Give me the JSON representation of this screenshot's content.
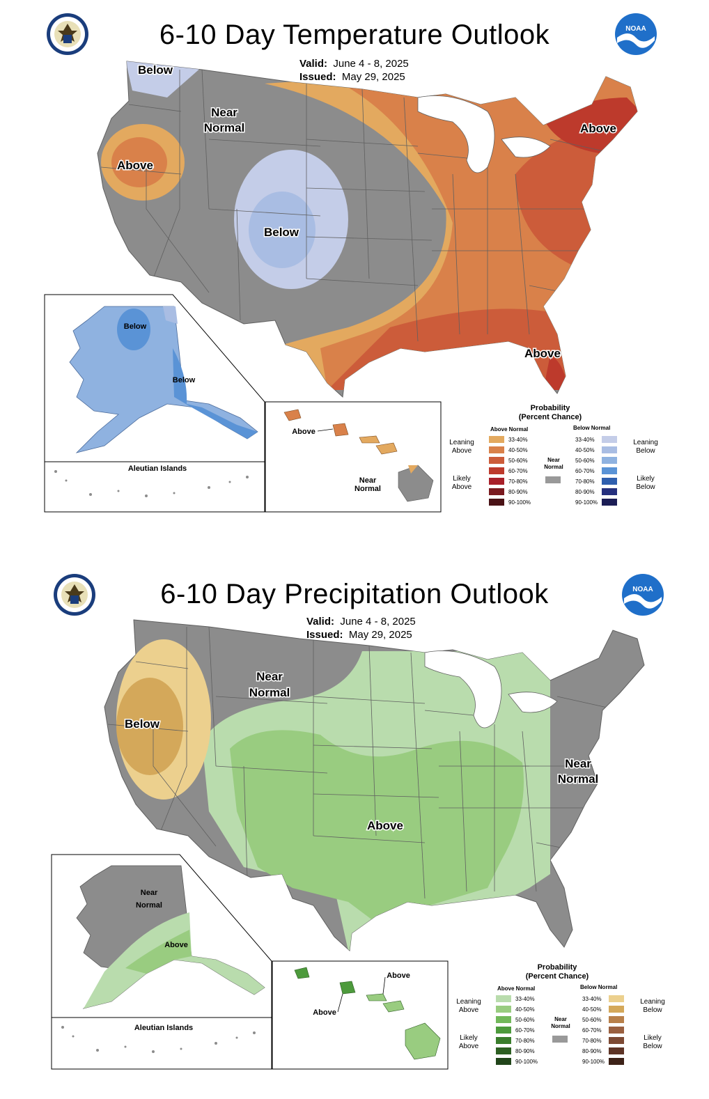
{
  "temperature": {
    "title": "6-10 Day Temperature Outlook",
    "valid_label": "Valid:",
    "valid_value": "June 4 - 8, 2025",
    "issued_label": "Issued:",
    "issued_value": "May 29, 2025",
    "map_labels": [
      "Below",
      "Near Normal",
      "Above",
      "Below",
      "Above",
      "Above"
    ],
    "alaska_labels": [
      "Below",
      "Below"
    ],
    "aleutian_label": "Aleutian Islands",
    "hawaii_labels": [
      "Above",
      "Near Normal"
    ],
    "legend": {
      "title_line1": "Probability",
      "title_line2": "(Percent Chance)",
      "above_header": "Above Normal",
      "below_header": "Below Normal",
      "near_normal": "Near Normal",
      "leaning_above": "Leaning Above",
      "likely_above": "Likely Above",
      "leaning_below": "Leaning Below",
      "likely_below": "Likely Below",
      "bins": [
        "33-40%",
        "40-50%",
        "50-60%",
        "60-70%",
        "70-80%",
        "80-90%",
        "90-100%"
      ],
      "above_colors": [
        "#e3a95f",
        "#d9814a",
        "#cc5c3a",
        "#bd3a2c",
        "#a8202a",
        "#7a1a1f",
        "#4a1216"
      ],
      "below_colors": [
        "#c4cde8",
        "#a9bde3",
        "#8fb2e0",
        "#5a93d6",
        "#2f5fae",
        "#25307e",
        "#1b1d55"
      ],
      "near_color": "#999999"
    }
  },
  "precipitation": {
    "title": "6-10 Day Precipitation Outlook",
    "valid_label": "Valid:",
    "valid_value": "June 4 - 8, 2025",
    "issued_label": "Issued:",
    "issued_value": "May 29, 2025",
    "map_labels": [
      "Near Normal",
      "Below",
      "Near Normal",
      "Above"
    ],
    "alaska_labels": [
      "Near Normal",
      "Above"
    ],
    "aleutian_label": "Aleutian Islands",
    "hawaii_labels": [
      "Above",
      "Above"
    ],
    "legend": {
      "title_line1": "Probability",
      "title_line2": "(Percent Chance)",
      "above_header": "Above Normal",
      "below_header": "Below Normal",
      "near_normal": "Near Normal",
      "leaning_above": "Leaning Above",
      "likely_above": "Likely Above",
      "leaning_below": "Leaning Below",
      "likely_below": "Likely Below",
      "bins": [
        "33-40%",
        "40-50%",
        "50-60%",
        "60-70%",
        "70-80%",
        "80-90%",
        "90-100%"
      ],
      "above_colors": [
        "#b9dcad",
        "#99cc80",
        "#72b85a",
        "#4d9a3c",
        "#3a7d2c",
        "#2d5f22",
        "#21451a"
      ],
      "below_colors": [
        "#ecd08e",
        "#d4a85a",
        "#b8804a",
        "#9a6040",
        "#7d4a34",
        "#5e3426",
        "#3d2218"
      ],
      "near_color": "#999999"
    }
  },
  "colors": {
    "gray": "#8c8c8c",
    "state_line": "#5f5f5f",
    "noaa_blue": "#1f6fc9"
  }
}
